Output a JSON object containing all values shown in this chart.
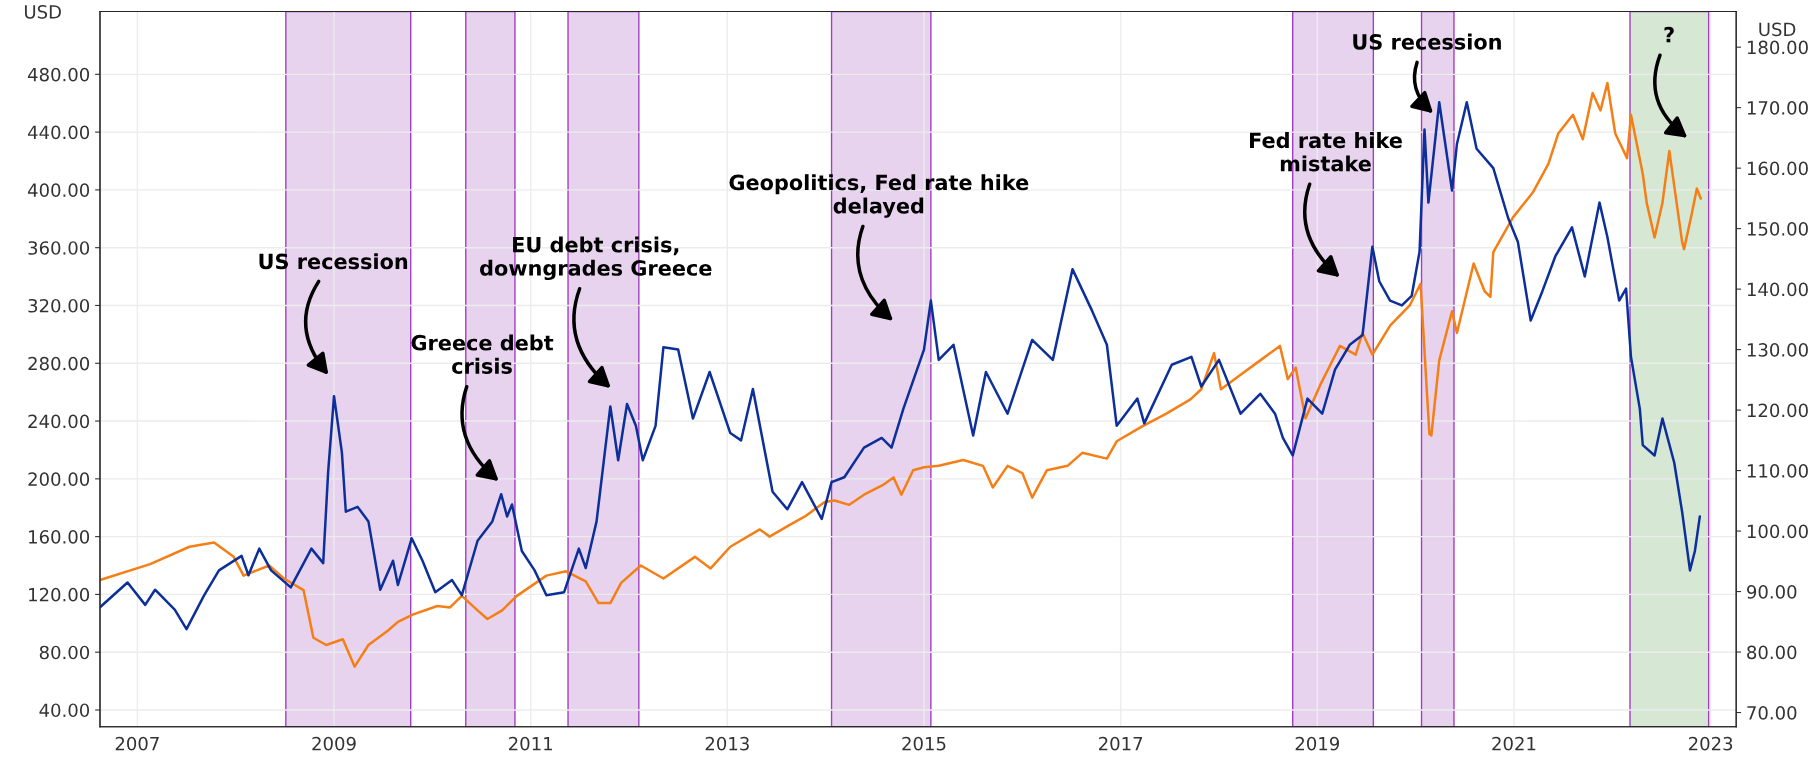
{
  "chart_data": {
    "type": "line",
    "ylabel": "USD",
    "y2label": "USD",
    "xlim": [
      2006.62,
      2023.26
    ],
    "xticks": [
      2007,
      2009,
      2011,
      2013,
      2015,
      2017,
      2019,
      2021,
      2023
    ],
    "ylim": [
      28.4,
      523.5
    ],
    "yticks": [
      {
        "value": 40,
        "label": "40.00"
      },
      {
        "value": 80,
        "label": "80.00"
      },
      {
        "value": 120,
        "label": "120.00"
      },
      {
        "value": 160,
        "label": "160.00"
      },
      {
        "value": 200,
        "label": "200.00"
      },
      {
        "value": 240,
        "label": "240.00"
      },
      {
        "value": 280,
        "label": "280.00"
      },
      {
        "value": 320,
        "label": "320.00"
      },
      {
        "value": 360,
        "label": "360.00"
      },
      {
        "value": 400,
        "label": "400.00"
      },
      {
        "value": 440,
        "label": "440.00"
      },
      {
        "value": 480,
        "label": "480.00"
      }
    ],
    "y2lim": [
      67.65,
      185.9
    ],
    "y2ticks": [
      {
        "value": 70,
        "label": "70.00"
      },
      {
        "value": 80,
        "label": "80.00"
      },
      {
        "value": 90,
        "label": "90.00"
      },
      {
        "value": 100,
        "label": "100.00"
      },
      {
        "value": 110,
        "label": "110.00"
      },
      {
        "value": 120,
        "label": "120.00"
      },
      {
        "value": 130,
        "label": "130.00"
      },
      {
        "value": 140,
        "label": "140.00"
      },
      {
        "value": 150,
        "label": "150.00"
      },
      {
        "value": 160,
        "label": "160.00"
      },
      {
        "value": 170,
        "label": "170.00"
      },
      {
        "value": 180,
        "label": "180.00"
      }
    ],
    "grid": true,
    "marker": "none",
    "line_style": "solid",
    "series": [
      {
        "color": "#f57f17",
        "x": [
          2006.62,
          2007.13,
          2007.53,
          2007.78,
          2007.98,
          2008.08,
          2008.34,
          2008.49,
          2008.69,
          2008.79,
          2008.92,
          2009.09,
          2009.21,
          2009.35,
          2009.55,
          2009.65,
          2009.8,
          2010.05,
          2010.18,
          2010.3,
          2010.46,
          2010.56,
          2010.71,
          2010.86,
          2011.16,
          2011.36,
          2011.56,
          2011.69,
          2011.81,
          2011.92,
          2012.12,
          2012.35,
          2012.67,
          2012.83,
          2013.03,
          2013.33,
          2013.43,
          2013.63,
          2013.79,
          2013.99,
          2014.09,
          2014.24,
          2014.39,
          2014.59,
          2014.69,
          2014.77,
          2014.89,
          2015.0,
          2015.15,
          2015.4,
          2015.6,
          2015.7,
          2015.85,
          2016.0,
          2016.1,
          2016.25,
          2016.46,
          2016.61,
          2016.86,
          2016.96,
          2017.21,
          2017.46,
          2017.71,
          2017.82,
          2017.95,
          2018.02,
          2018.22,
          2018.42,
          2018.62,
          2018.7,
          2018.78,
          2018.88,
          2019.03,
          2019.23,
          2019.39,
          2019.46,
          2019.56,
          2019.74,
          2019.94,
          2020.05,
          2020.14,
          2020.16,
          2020.24,
          2020.37,
          2020.42,
          2020.59,
          2020.7,
          2020.76,
          2020.79,
          2020.99,
          2021.19,
          2021.35,
          2021.45,
          2021.6,
          2021.7,
          2021.8,
          2021.88,
          2021.95,
          2022.03,
          2022.15,
          2022.19,
          2022.31,
          2022.35,
          2022.43,
          2022.51,
          2022.58,
          2022.71,
          2022.73,
          2022.81,
          2022.86,
          2022.9
        ],
        "values": [
          130,
          141,
          153,
          156,
          146,
          133,
          140,
          131,
          123,
          90,
          85,
          89,
          70,
          85,
          95,
          101,
          106,
          112,
          111,
          119,
          109,
          103,
          109,
          119,
          133,
          136,
          129,
          114,
          114,
          128,
          140,
          131,
          146,
          138,
          153,
          165,
          160,
          168,
          174,
          184,
          185,
          182,
          189,
          196,
          201,
          189,
          206,
          208,
          209,
          213,
          209,
          194,
          209,
          204,
          187,
          206,
          209,
          218,
          214,
          226,
          236,
          245,
          255,
          262,
          287,
          262,
          272,
          282,
          292,
          269,
          277,
          242,
          265,
          292,
          286,
          301,
          286,
          306,
          320,
          335,
          231,
          230,
          282,
          316,
          301,
          349,
          330,
          326,
          357,
          381,
          398,
          418,
          439,
          452,
          435,
          467,
          455,
          474,
          439,
          422,
          452,
          411,
          391,
          367,
          391,
          427,
          364,
          359,
          384,
          401,
          394
        ]
      },
      {
        "color": "#0c2f9a",
        "axis": "y2",
        "x": [
          2006.62,
          2006.9,
          2007.08,
          2007.18,
          2007.38,
          2007.5,
          2007.68,
          2007.83,
          2008.06,
          2008.13,
          2008.24,
          2008.36,
          2008.56,
          2008.77,
          2008.89,
          2008.94,
          2009.0,
          2009.08,
          2009.12,
          2009.24,
          2009.35,
          2009.47,
          2009.6,
          2009.65,
          2009.79,
          2009.9,
          2010.03,
          2010.2,
          2010.3,
          2010.46,
          2010.61,
          2010.7,
          2010.76,
          2010.81,
          2010.91,
          2011.04,
          2011.16,
          2011.34,
          2011.49,
          2011.56,
          2011.67,
          2011.81,
          2011.89,
          2011.98,
          2012.07,
          2012.14,
          2012.27,
          2012.35,
          2012.5,
          2012.65,
          2012.82,
          2013.03,
          2013.14,
          2013.26,
          2013.46,
          2013.61,
          2013.76,
          2013.96,
          2014.06,
          2014.19,
          2014.39,
          2014.57,
          2014.67,
          2014.79,
          2015.0,
          2015.07,
          2015.15,
          2015.3,
          2015.5,
          2015.63,
          2015.85,
          2016.1,
          2016.31,
          2016.51,
          2016.71,
          2016.86,
          2016.96,
          2017.17,
          2017.24,
          2017.52,
          2017.72,
          2017.82,
          2018.0,
          2018.22,
          2018.42,
          2018.57,
          2018.65,
          2018.75,
          2018.9,
          2019.05,
          2019.18,
          2019.33,
          2019.46,
          2019.56,
          2019.63,
          2019.74,
          2019.86,
          2019.96,
          2020.04,
          2020.09,
          2020.13,
          2020.24,
          2020.37,
          2020.42,
          2020.52,
          2020.62,
          2020.79,
          2020.94,
          2021.04,
          2021.17,
          2021.29,
          2021.42,
          2021.59,
          2021.72,
          2021.87,
          2021.95,
          2022.07,
          2022.14,
          2022.19,
          2022.28,
          2022.31,
          2022.43,
          2022.51,
          2022.63,
          2022.71,
          2022.79,
          2022.84,
          2022.89
        ],
        "values": [
          87.4,
          91.5,
          87.8,
          90.3,
          87,
          83.8,
          89.4,
          93.5,
          95.9,
          92.7,
          97.1,
          93.5,
          90.7,
          97.1,
          94.7,
          109.7,
          122.3,
          113,
          103.2,
          104,
          101.6,
          90.3,
          95.1,
          91.1,
          98.8,
          95.1,
          89.9,
          91.9,
          89.4,
          98.4,
          101.6,
          106.1,
          102.4,
          104.4,
          96.7,
          93.5,
          89.4,
          89.9,
          97.1,
          93.9,
          101.6,
          120.6,
          111.7,
          121,
          117.4,
          111.7,
          117.4,
          130.4,
          130,
          118.6,
          126.3,
          116.2,
          115,
          123.5,
          106.5,
          103.6,
          108.1,
          102,
          108.1,
          108.9,
          113.8,
          115.4,
          113.8,
          120.2,
          130,
          138.1,
          128.3,
          130.8,
          115.8,
          126.3,
          119.4,
          131.6,
          128.3,
          143.3,
          136.4,
          130.8,
          117.4,
          121.9,
          117.8,
          127.5,
          128.8,
          123.9,
          128.3,
          119.4,
          122.7,
          119.4,
          115.4,
          112.5,
          121.9,
          119.4,
          126.7,
          130.8,
          132.4,
          147,
          141.3,
          138.1,
          137.3,
          138.9,
          146.2,
          166.4,
          154.3,
          170.9,
          156.3,
          164,
          170.9,
          163.2,
          160,
          151.8,
          147.8,
          134.8,
          139.7,
          145.4,
          150.2,
          142.1,
          154.3,
          148.6,
          138.1,
          140.1,
          128.8,
          120.2,
          114.2,
          112.5,
          118.6,
          111.3,
          103.2,
          93.5,
          96.7,
          102.4
        ]
      }
    ],
    "bands": [
      {
        "axis": "x",
        "from": 2008.51,
        "to": 2009.78,
        "color": "#e8d3ee"
      },
      {
        "axis": "x",
        "from": 2010.34,
        "to": 2010.84,
        "color": "#e8d3ee"
      },
      {
        "axis": "x",
        "from": 2011.38,
        "to": 2012.1,
        "color": "#e8d3ee"
      },
      {
        "axis": "x",
        "from": 2014.06,
        "to": 2015.07,
        "color": "#e8d3ee"
      },
      {
        "axis": "x",
        "from": 2018.75,
        "to": 2019.57,
        "color": "#e8d3ee"
      },
      {
        "axis": "x",
        "from": 2020.06,
        "to": 2020.39,
        "color": "#e8d3ee"
      },
      {
        "axis": "x",
        "from": 2022.18,
        "to": 2022.98,
        "color": "#d6e7d4"
      }
    ],
    "annotations": [
      "US recession",
      "Greece debt\ncrisis",
      "EU debt crisis,\ndowngrades Greece",
      "Geopolitics, Fed rate hike\ndelayed",
      "Fed rate hike\nmistake",
      "US recession",
      "?"
    ]
  }
}
